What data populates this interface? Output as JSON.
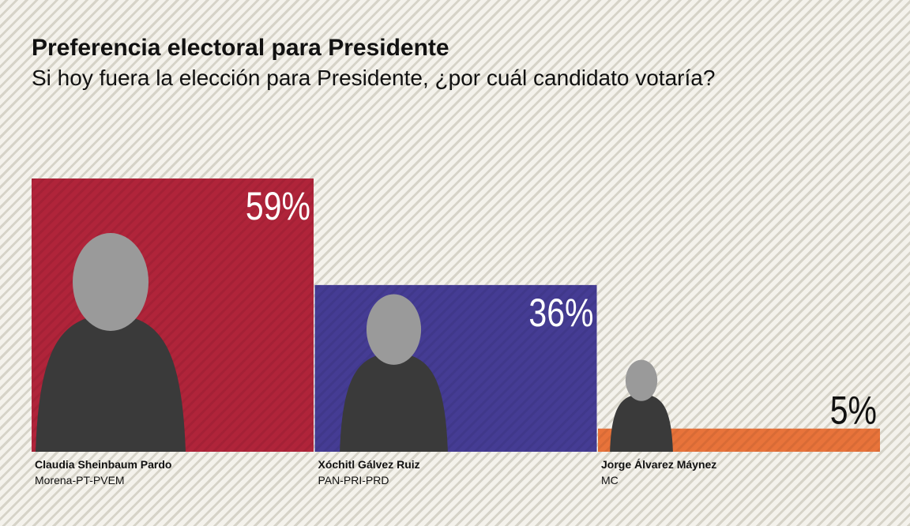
{
  "chart_data": {
    "type": "bar",
    "title": "Preferencia electoral para Presidente",
    "subtitle": "Si hoy fuera la elección para Presidente, ¿por cuál candidato votaría?",
    "categories": [
      "Claudia Sheinbaum Pardo",
      "Xóchitl Gálvez Ruiz",
      "Jorge Álvarez Máynez"
    ],
    "category_sublabels": [
      "Morena-PT-PVEM",
      "PAN-PRI-PRD",
      "MC"
    ],
    "values": [
      59,
      36,
      5
    ],
    "value_labels": [
      "59%",
      "36%",
      "5%"
    ],
    "colors": [
      "#b0243a",
      "#453c94",
      "#e8733a"
    ]
  }
}
